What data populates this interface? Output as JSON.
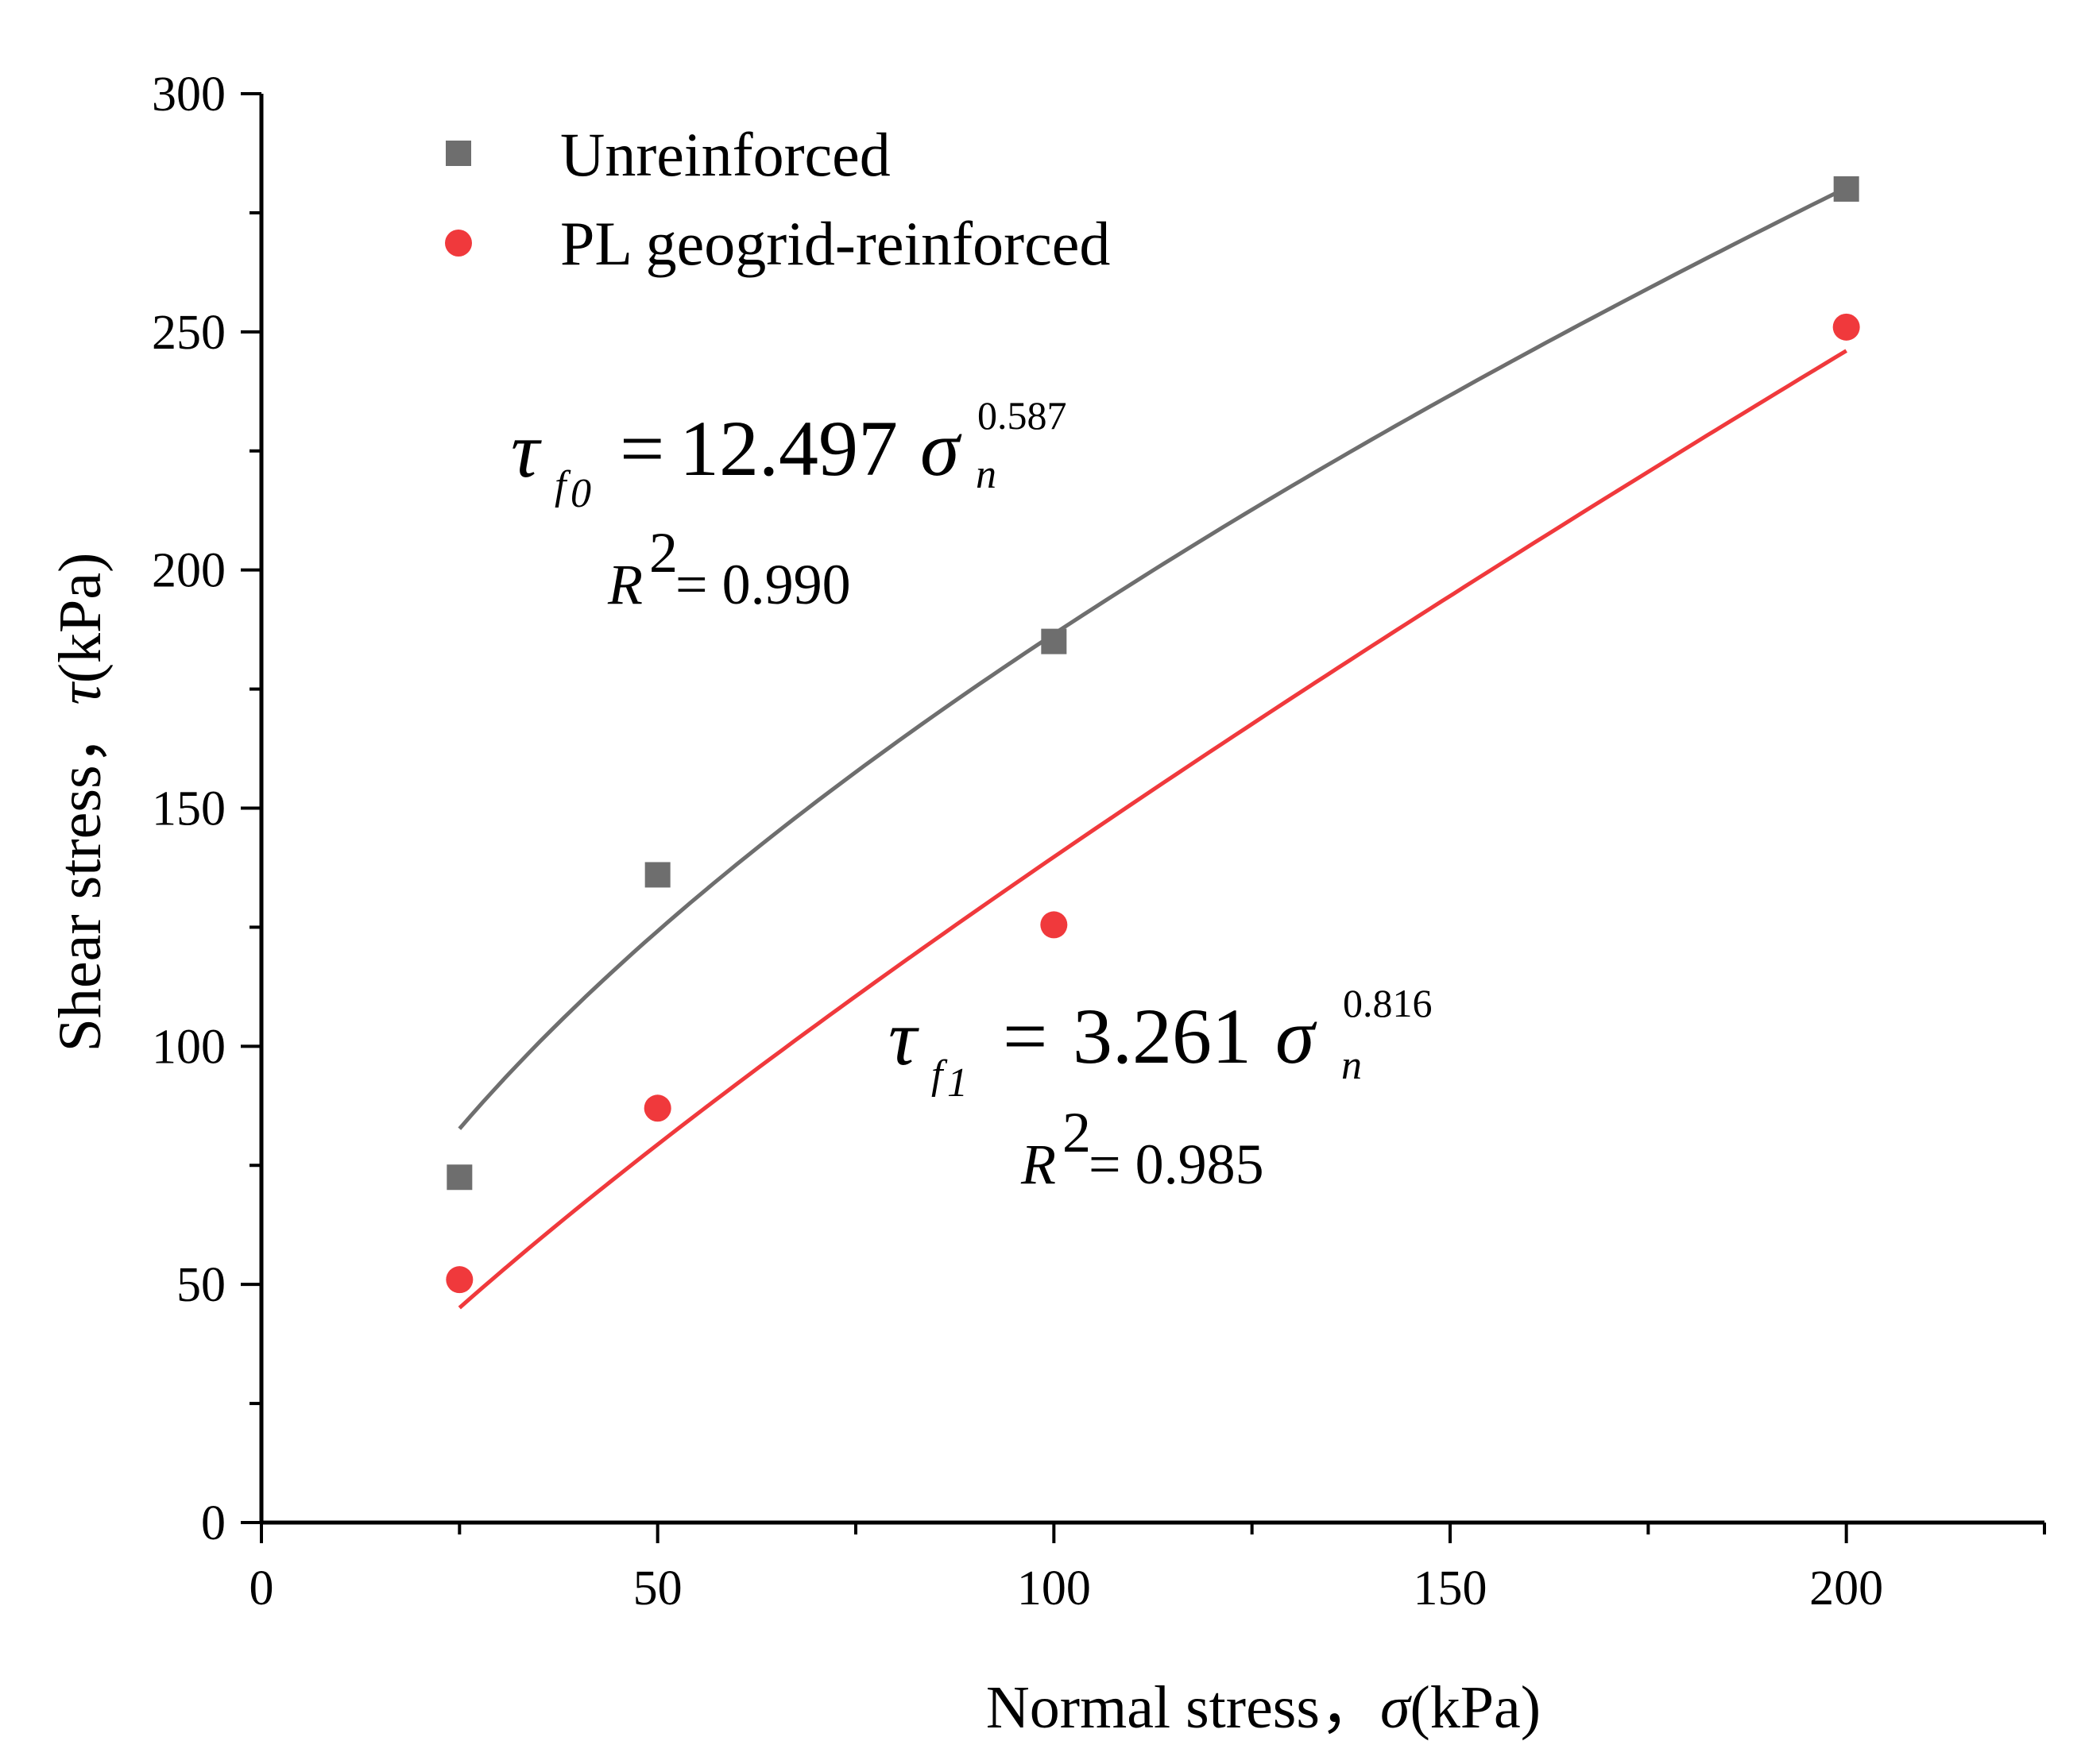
{
  "chart_data": {
    "type": "scatter",
    "xlabel_text": "Normal stress，",
    "xlabel_symbol": "σ",
    "xlabel_unit": "(kPa)",
    "ylabel_text": "Shear stress，",
    "ylabel_symbol": "τ",
    "ylabel_unit": "(kPa)",
    "xlim": [
      0,
      225
    ],
    "ylim": [
      0,
      300
    ],
    "x_ticks": [
      0,
      50,
      100,
      150,
      200
    ],
    "x_minor_ticks": [
      25,
      75,
      125,
      175,
      225
    ],
    "y_ticks": [
      0,
      50,
      100,
      150,
      200,
      250,
      300
    ],
    "y_minor_ticks": [
      25,
      75,
      125,
      175,
      225,
      275
    ],
    "legend_position": "top-left",
    "series": [
      {
        "name": "Unreinforced",
        "marker": "square",
        "color": "#6e6e6e",
        "x": [
          25,
          50,
          100,
          200
        ],
        "y": [
          72.5,
          136,
          185,
          280
        ],
        "fit": {
          "coef": 12.497,
          "exp": 0.587,
          "x_range": [
            25,
            200
          ]
        },
        "equation": {
          "lhs": "τ",
          "sub_f": "f",
          "sub_idx": "0",
          "eq": "=",
          "coef": "12.497",
          "sym": "σ",
          "sub_n": "n",
          "exp": "0.587"
        },
        "r2": {
          "R": "R",
          "sup": "2",
          "rest": " = 0.990"
        }
      },
      {
        "name": "PL geogrid-reinforced",
        "marker": "circle",
        "color": "#f0393c",
        "x": [
          25,
          50,
          100,
          200
        ],
        "y": [
          51,
          87,
          125.5,
          251
        ],
        "fit": {
          "coef": 3.261,
          "exp": 0.816,
          "x_range": [
            25,
            200
          ]
        },
        "equation": {
          "lhs": "τ",
          "sub_f": "f",
          "sub_idx": "1",
          "eq": "=",
          "coef": "3.261",
          "sym": "σ",
          "sub_n": "n",
          "exp": "0.816"
        },
        "r2": {
          "R": "R",
          "sup": "2",
          "rest": " = 0.985"
        }
      }
    ]
  }
}
